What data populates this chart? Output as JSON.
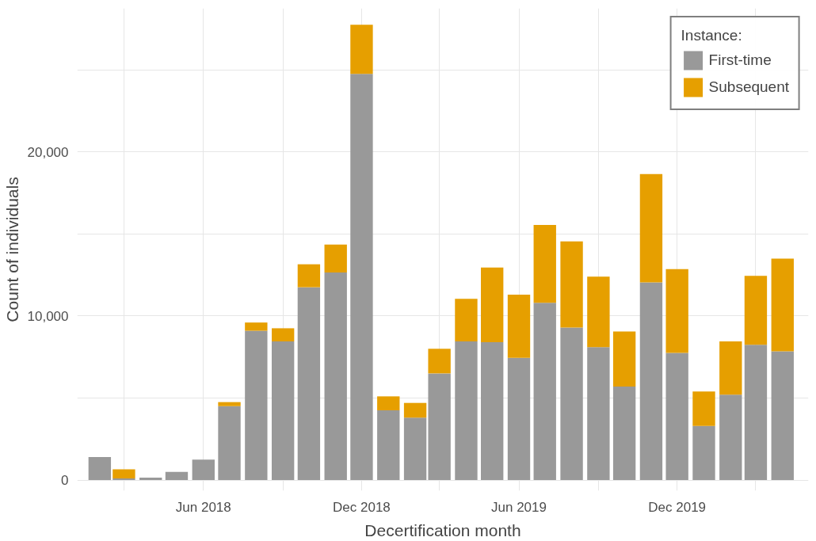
{
  "chart_data": {
    "type": "bar",
    "stacked": true,
    "xlabel": "Decertification month",
    "ylabel": "Count of individuals",
    "legend_title": "Instance:",
    "x": [
      "2018-02",
      "2018-03",
      "2018-04",
      "2018-05",
      "2018-06",
      "2018-07",
      "2018-08",
      "2018-09",
      "2018-10",
      "2018-11",
      "2018-12",
      "2019-01",
      "2019-02",
      "2019-03",
      "2019-04",
      "2019-05",
      "2019-06",
      "2019-07",
      "2019-08",
      "2019-09",
      "2019-10",
      "2019-11",
      "2019-12",
      "2020-01",
      "2020-02",
      "2020-03",
      "2020-04"
    ],
    "series": [
      {
        "name": "First-time",
        "color": "#999999",
        "values": [
          1400,
          100,
          150,
          500,
          1250,
          4500,
          9100,
          8450,
          11750,
          12650,
          24750,
          4250,
          3800,
          6500,
          8450,
          8400,
          7450,
          10800,
          9300,
          8100,
          5700,
          12050,
          7750,
          3300,
          5200,
          8250,
          7850
        ]
      },
      {
        "name": "Subsequent",
        "color": "#e69f00",
        "values": [
          0,
          550,
          0,
          0,
          0,
          250,
          500,
          800,
          1400,
          1700,
          3000,
          850,
          900,
          1500,
          2600,
          4550,
          3850,
          4750,
          5250,
          4300,
          3350,
          6600,
          5100,
          2100,
          3250,
          4200,
          5650
        ]
      }
    ],
    "xlim": [
      "2018-01-06",
      "2020-05-01"
    ],
    "xticks": [
      {
        "value": "2018-03",
        "label": null
      },
      {
        "value": "2018-06",
        "label": "Jun 2018"
      },
      {
        "value": "2018-09",
        "label": null
      },
      {
        "value": "2018-12",
        "label": "Dec 2018"
      },
      {
        "value": "2019-03",
        "label": null
      },
      {
        "value": "2019-06",
        "label": "Jun 2019"
      },
      {
        "value": "2019-09",
        "label": null
      },
      {
        "value": "2019-12",
        "label": "Dec 2019"
      },
      {
        "value": "2020-03",
        "label": null
      }
    ],
    "ylim": [
      -650,
      28750
    ],
    "yticks": [
      {
        "value": 0,
        "label": "0"
      },
      {
        "value": 5000,
        "label": null
      },
      {
        "value": 10000,
        "label": "10,000"
      },
      {
        "value": 15000,
        "label": null
      },
      {
        "value": 20000,
        "label": "20,000"
      },
      {
        "value": 25000,
        "label": null
      }
    ],
    "grid": true,
    "legend": "top right"
  }
}
